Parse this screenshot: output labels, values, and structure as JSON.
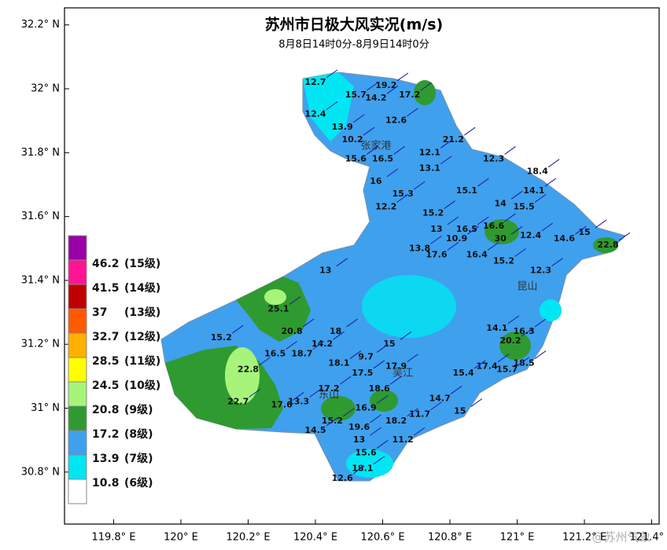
{
  "header": {
    "title": "苏州市日极大风实况(m/s)",
    "subtitle": "8月8日14时0分-8月9日14时0分"
  },
  "map": {
    "lon_ticks": [
      {
        "value": 119.8,
        "label": "119.8° E"
      },
      {
        "value": 120,
        "label": "120° E"
      },
      {
        "value": 120.2,
        "label": "120.2° E"
      },
      {
        "value": 120.4,
        "label": "120.4° E"
      },
      {
        "value": 120.6,
        "label": "120.6° E"
      },
      {
        "value": 120.8,
        "label": "120.8° E"
      },
      {
        "value": 121,
        "label": "121° E"
      },
      {
        "value": 121.2,
        "label": "121.2° E"
      },
      {
        "value": 121.4,
        "label": "121.4° E"
      }
    ],
    "lat_ticks": [
      {
        "value": 32.2,
        "label": "32.2° N"
      },
      {
        "value": 32,
        "label": "32° N"
      },
      {
        "value": 31.8,
        "label": "31.8° N"
      },
      {
        "value": 31.6,
        "label": "31.6° N"
      },
      {
        "value": 31.4,
        "label": "31.4° N"
      },
      {
        "value": 31.2,
        "label": "31.2° N"
      },
      {
        "value": 31,
        "label": "31° N"
      },
      {
        "value": 30.8,
        "label": "30.8° N"
      }
    ],
    "cities": [
      {
        "name": "张家港",
        "lon": 120.58,
        "lat": 31.82
      },
      {
        "name": "昆山",
        "lon": 121.03,
        "lat": 31.38
      },
      {
        "name": "吴江",
        "lon": 120.66,
        "lat": 31.11
      },
      {
        "name": "东山",
        "lon": 120.44,
        "lat": 31.04
      }
    ],
    "stations": [
      {
        "value": 12.7,
        "lon": 120.4,
        "lat": 32.02
      },
      {
        "value": 19.2,
        "lon": 120.61,
        "lat": 32.01
      },
      {
        "value": 15.7,
        "lon": 120.52,
        "lat": 31.98
      },
      {
        "value": 14.2,
        "lon": 120.58,
        "lat": 31.97
      },
      {
        "value": 17.2,
        "lon": 120.68,
        "lat": 31.98
      },
      {
        "value": 12.4,
        "lon": 120.4,
        "lat": 31.92
      },
      {
        "value": 13.9,
        "lon": 120.48,
        "lat": 31.88
      },
      {
        "value": 12.6,
        "lon": 120.64,
        "lat": 31.9
      },
      {
        "value": 10.2,
        "lon": 120.51,
        "lat": 31.84
      },
      {
        "value": 15.6,
        "lon": 120.52,
        "lat": 31.78
      },
      {
        "value": 16.5,
        "lon": 120.6,
        "lat": 31.78
      },
      {
        "value": 21.2,
        "lon": 120.81,
        "lat": 31.84
      },
      {
        "value": 12.1,
        "lon": 120.74,
        "lat": 31.8
      },
      {
        "value": 13.1,
        "lon": 120.74,
        "lat": 31.75
      },
      {
        "value": 12.3,
        "lon": 120.93,
        "lat": 31.78
      },
      {
        "value": 18.4,
        "lon": 121.06,
        "lat": 31.74
      },
      {
        "value": 16.0,
        "lon": 120.58,
        "lat": 31.71
      },
      {
        "value": 15.3,
        "lon": 120.66,
        "lat": 31.67
      },
      {
        "value": 15.1,
        "lon": 120.85,
        "lat": 31.68
      },
      {
        "value": 14.1,
        "lon": 121.05,
        "lat": 31.68
      },
      {
        "value": 12.2,
        "lon": 120.61,
        "lat": 31.63
      },
      {
        "value": 15.2,
        "lon": 120.75,
        "lat": 31.61
      },
      {
        "value": 14.0,
        "lon": 120.95,
        "lat": 31.64
      },
      {
        "value": 15.5,
        "lon": 121.02,
        "lat": 31.63
      },
      {
        "value": 16.6,
        "lon": 120.93,
        "lat": 31.57
      },
      {
        "value": 16.5,
        "lon": 120.85,
        "lat": 31.56
      },
      {
        "value": 13.0,
        "lon": 120.76,
        "lat": 31.56
      },
      {
        "value": 30.0,
        "lon": 120.95,
        "lat": 31.53
      },
      {
        "value": 12.4,
        "lon": 121.04,
        "lat": 31.54
      },
      {
        "value": 14.6,
        "lon": 121.14,
        "lat": 31.53
      },
      {
        "value": 15.0,
        "lon": 121.2,
        "lat": 31.55
      },
      {
        "value": 22.8,
        "lon": 121.27,
        "lat": 31.51
      },
      {
        "value": 10.9,
        "lon": 120.82,
        "lat": 31.53
      },
      {
        "value": 13.8,
        "lon": 120.71,
        "lat": 31.5
      },
      {
        "value": 17.6,
        "lon": 120.76,
        "lat": 31.48
      },
      {
        "value": 16.4,
        "lon": 120.88,
        "lat": 31.48
      },
      {
        "value": 15.2,
        "lon": 120.96,
        "lat": 31.46
      },
      {
        "value": 13.0,
        "lon": 120.43,
        "lat": 31.43
      },
      {
        "value": 12.3,
        "lon": 121.07,
        "lat": 31.43
      },
      {
        "value": 25.1,
        "lon": 120.29,
        "lat": 31.31
      },
      {
        "value": 20.8,
        "lon": 120.33,
        "lat": 31.24
      },
      {
        "value": 15.2,
        "lon": 120.12,
        "lat": 31.22
      },
      {
        "value": 14.2,
        "lon": 120.42,
        "lat": 31.2
      },
      {
        "value": 18.0,
        "lon": 120.46,
        "lat": 31.24
      },
      {
        "value": 15.0,
        "lon": 120.62,
        "lat": 31.2
      },
      {
        "value": 16.5,
        "lon": 120.28,
        "lat": 31.17
      },
      {
        "value": 18.7,
        "lon": 120.36,
        "lat": 31.17
      },
      {
        "value": 20.2,
        "lon": 120.98,
        "lat": 31.21
      },
      {
        "value": 14.1,
        "lon": 120.94,
        "lat": 31.25
      },
      {
        "value": 16.3,
        "lon": 121.02,
        "lat": 31.24
      },
      {
        "value": 18.5,
        "lon": 121.02,
        "lat": 31.14
      },
      {
        "value": 22.8,
        "lon": 120.2,
        "lat": 31.12
      },
      {
        "value": 22.7,
        "lon": 120.17,
        "lat": 31.02
      },
      {
        "value": 18.1,
        "lon": 120.47,
        "lat": 31.14
      },
      {
        "value": 9.7,
        "lon": 120.55,
        "lat": 31.16
      },
      {
        "value": 17.5,
        "lon": 120.54,
        "lat": 31.11
      },
      {
        "value": 17.4,
        "lon": 120.91,
        "lat": 31.13
      },
      {
        "value": 15.7,
        "lon": 120.97,
        "lat": 31.12
      },
      {
        "value": 15.4,
        "lon": 120.84,
        "lat": 31.11
      },
      {
        "value": 17.9,
        "lon": 120.64,
        "lat": 31.13
      },
      {
        "value": 17.2,
        "lon": 120.44,
        "lat": 31.06
      },
      {
        "value": 13.3,
        "lon": 120.35,
        "lat": 31.02
      },
      {
        "value": 17.6,
        "lon": 120.3,
        "lat": 31.01
      },
      {
        "value": 18.6,
        "lon": 120.59,
        "lat": 31.06
      },
      {
        "value": 14.7,
        "lon": 120.77,
        "lat": 31.03
      },
      {
        "value": 15.0,
        "lon": 120.83,
        "lat": 30.99
      },
      {
        "value": 11.7,
        "lon": 120.71,
        "lat": 30.98
      },
      {
        "value": 16.9,
        "lon": 120.55,
        "lat": 31.0
      },
      {
        "value": 15.2,
        "lon": 120.45,
        "lat": 30.96
      },
      {
        "value": 19.6,
        "lon": 120.53,
        "lat": 30.94
      },
      {
        "value": 14.5,
        "lon": 120.4,
        "lat": 30.93
      },
      {
        "value": 18.2,
        "lon": 120.64,
        "lat": 30.96
      },
      {
        "value": 13.0,
        "lon": 120.53,
        "lat": 30.9
      },
      {
        "value": 11.2,
        "lon": 120.66,
        "lat": 30.9
      },
      {
        "value": 15.6,
        "lon": 120.55,
        "lat": 30.86
      },
      {
        "value": 18.1,
        "lon": 120.54,
        "lat": 30.81
      },
      {
        "value": 12.6,
        "lon": 120.48,
        "lat": 30.78
      }
    ]
  },
  "legend": [
    {
      "value": 46.2,
      "level": "(15级)",
      "color": "#ff1493"
    },
    {
      "value": 41.5,
      "level": "(14级)",
      "color": "#c00000"
    },
    {
      "value": 37,
      "level": "(13级)",
      "color": "#ff5a00"
    },
    {
      "value": 32.7,
      "level": "(12级)",
      "color": "#ffb000"
    },
    {
      "value": 28.5,
      "level": "(11级)",
      "color": "#ffff00"
    },
    {
      "value": 24.5,
      "level": "(10级)",
      "color": "#a6f57a"
    },
    {
      "value": 20.8,
      "level": "(9级)",
      "color": "#2f9a2f"
    },
    {
      "value": 17.2,
      "level": "(8级)",
      "color": "#3fa0ee"
    },
    {
      "value": 13.9,
      "level": "(7级)",
      "color": "#00e6f2"
    },
    {
      "value": 10.8,
      "level": "(6级)",
      "color": "#ffffff"
    }
  ],
  "legend_top_color": "#9900a8",
  "watermark": "@苏州气象"
}
